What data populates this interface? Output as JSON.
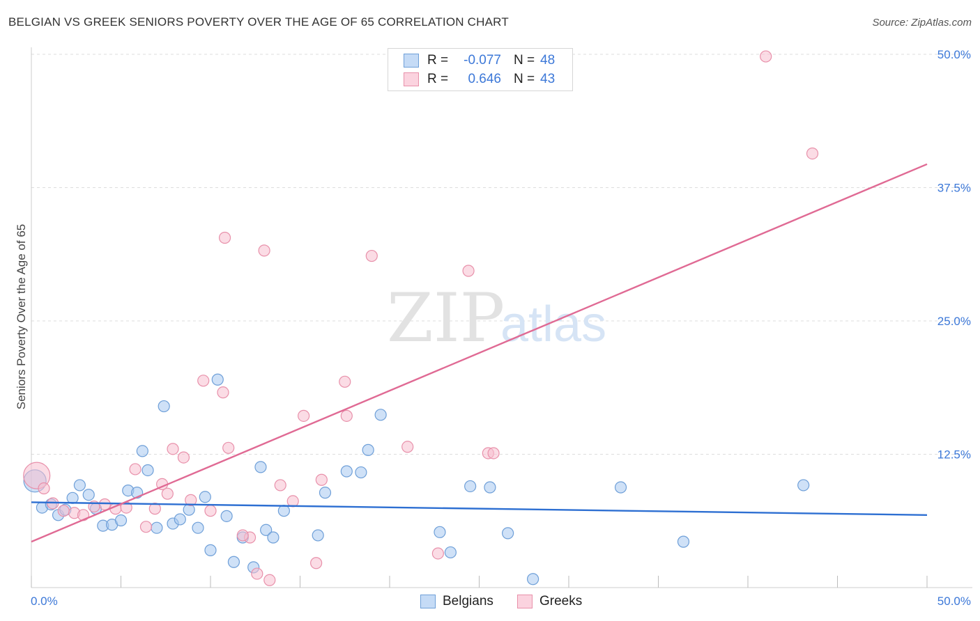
{
  "header": {
    "title": "BELGIAN VS GREEK SENIORS POVERTY OVER THE AGE OF 65 CORRELATION CHART",
    "source": "Source: ZipAtlas.com"
  },
  "watermark": {
    "zip": "ZIP",
    "atlas": "atlas"
  },
  "legend": {
    "rows": [
      {
        "r_label": "R =",
        "r_value": "-0.077",
        "n_label": "N =",
        "n_value": "48"
      },
      {
        "r_label": "R =",
        "r_value": "0.646",
        "n_label": "N =",
        "n_value": "43"
      }
    ]
  },
  "bottom_legend": {
    "belgians": "Belgians",
    "greeks": "Greeks"
  },
  "colors": {
    "belgian_fill": "#a8c8f0",
    "belgian_stroke": "#6e9fd8",
    "belgian_line": "#2d6fd2",
    "greek_fill": "#f8c0d0",
    "greek_stroke": "#e890aa",
    "greek_line": "#e06a94",
    "axis_text": "#3c78d8",
    "grid": "#dddddd"
  },
  "chart_data": {
    "type": "scatter",
    "title": "BELGIAN VS GREEK SENIORS POVERTY OVER THE AGE OF 65 CORRELATION CHART",
    "xlabel": "",
    "ylabel": "Seniors Poverty Over the Age of 65",
    "xlim": [
      0,
      50
    ],
    "ylim": [
      0,
      50
    ],
    "x_tick_labels": [
      "0.0%",
      "50.0%"
    ],
    "y_ticks": [
      12.5,
      25.0,
      37.5,
      50.0
    ],
    "y_tick_labels": [
      "12.5%",
      "25.0%",
      "37.5%",
      "50.0%"
    ],
    "grid": true,
    "series": [
      {
        "name": "Belgians",
        "r": -0.077,
        "n": 48,
        "trend": {
          "x": [
            0,
            50
          ],
          "y": [
            8.0,
            6.8
          ]
        },
        "points": [
          [
            0.2,
            10.0
          ],
          [
            0.6,
            7.5
          ],
          [
            1.1,
            7.8
          ],
          [
            1.5,
            6.8
          ],
          [
            1.9,
            7.3
          ],
          [
            2.3,
            8.4
          ],
          [
            2.7,
            9.6
          ],
          [
            3.2,
            8.7
          ],
          [
            3.6,
            7.4
          ],
          [
            4.0,
            5.8
          ],
          [
            4.5,
            5.9
          ],
          [
            5.0,
            6.3
          ],
          [
            5.4,
            9.1
          ],
          [
            5.9,
            8.9
          ],
          [
            6.2,
            12.8
          ],
          [
            6.5,
            11.0
          ],
          [
            7.0,
            5.6
          ],
          [
            7.4,
            17.0
          ],
          [
            7.9,
            6.0
          ],
          [
            8.3,
            6.4
          ],
          [
            8.8,
            7.3
          ],
          [
            9.3,
            5.6
          ],
          [
            9.7,
            8.5
          ],
          [
            10.0,
            3.5
          ],
          [
            10.4,
            19.5
          ],
          [
            10.9,
            6.7
          ],
          [
            11.3,
            2.4
          ],
          [
            11.8,
            4.7
          ],
          [
            12.4,
            1.9
          ],
          [
            12.8,
            11.3
          ],
          [
            13.1,
            5.4
          ],
          [
            13.5,
            4.7
          ],
          [
            14.1,
            7.2
          ],
          [
            16.0,
            4.9
          ],
          [
            16.4,
            8.9
          ],
          [
            17.6,
            10.9
          ],
          [
            18.4,
            10.8
          ],
          [
            18.8,
            12.9
          ],
          [
            19.5,
            16.2
          ],
          [
            22.8,
            5.2
          ],
          [
            23.4,
            3.3
          ],
          [
            24.5,
            9.5
          ],
          [
            25.6,
            9.4
          ],
          [
            26.6,
            5.1
          ],
          [
            28.0,
            0.8
          ],
          [
            32.9,
            9.4
          ],
          [
            36.4,
            4.3
          ],
          [
            43.1,
            9.6
          ]
        ]
      },
      {
        "name": "Greeks",
        "r": 0.646,
        "n": 43,
        "trend": {
          "x": [
            0,
            50
          ],
          "y": [
            4.3,
            39.7
          ]
        },
        "points": [
          [
            0.3,
            10.5
          ],
          [
            0.7,
            9.3
          ],
          [
            1.2,
            7.9
          ],
          [
            1.8,
            7.2
          ],
          [
            2.4,
            7.0
          ],
          [
            2.9,
            6.8
          ],
          [
            3.5,
            7.6
          ],
          [
            4.1,
            7.8
          ],
          [
            4.7,
            7.4
          ],
          [
            5.3,
            7.5
          ],
          [
            5.8,
            11.1
          ],
          [
            6.4,
            5.7
          ],
          [
            6.9,
            7.4
          ],
          [
            7.3,
            9.7
          ],
          [
            7.6,
            8.8
          ],
          [
            7.9,
            13.0
          ],
          [
            8.5,
            12.2
          ],
          [
            8.9,
            8.2
          ],
          [
            9.6,
            19.4
          ],
          [
            10.0,
            7.2
          ],
          [
            10.7,
            18.3
          ],
          [
            11.0,
            13.1
          ],
          [
            10.8,
            32.8
          ],
          [
            12.2,
            4.7
          ],
          [
            12.6,
            1.3
          ],
          [
            13.0,
            31.6
          ],
          [
            13.3,
            0.7
          ],
          [
            13.9,
            9.6
          ],
          [
            14.6,
            8.1
          ],
          [
            15.2,
            16.1
          ],
          [
            15.9,
            2.3
          ],
          [
            16.2,
            10.1
          ],
          [
            17.5,
            19.3
          ],
          [
            17.6,
            16.1
          ],
          [
            19.0,
            31.1
          ],
          [
            21.0,
            13.2
          ],
          [
            22.7,
            3.2
          ],
          [
            24.4,
            29.7
          ],
          [
            25.5,
            12.6
          ],
          [
            25.8,
            12.6
          ],
          [
            41.0,
            49.8
          ],
          [
            43.6,
            40.7
          ],
          [
            11.8,
            4.9
          ]
        ]
      }
    ]
  }
}
